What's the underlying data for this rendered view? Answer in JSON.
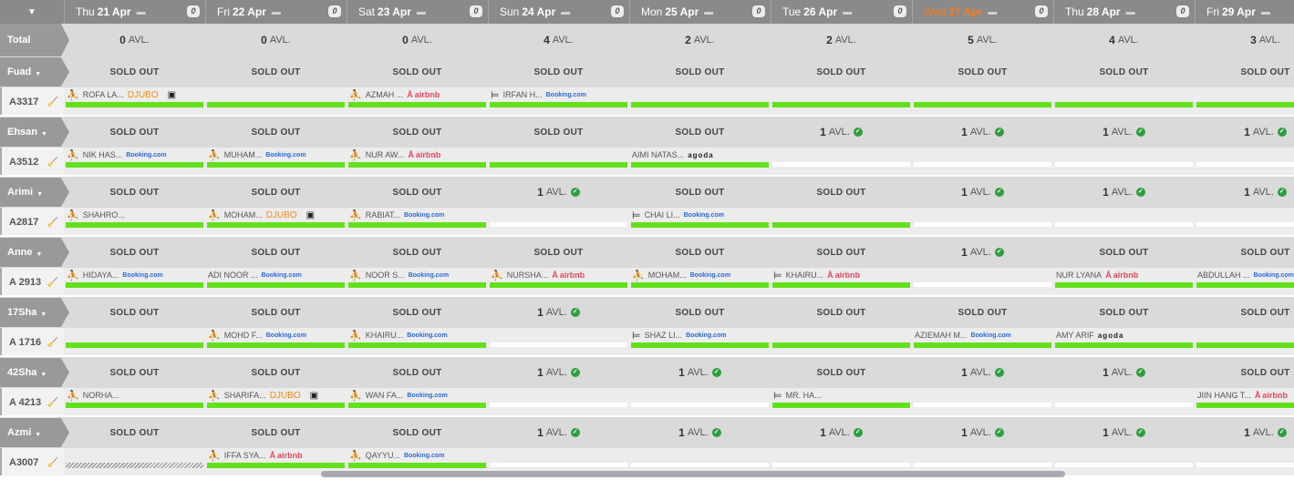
{
  "header": {
    "collapse_icon": "triangle-down-icon",
    "days": [
      {
        "dow": "Thu",
        "date": "21 Apr",
        "comments": "0",
        "today": false
      },
      {
        "dow": "Fri",
        "date": "22 Apr",
        "comments": "0",
        "today": false
      },
      {
        "dow": "Sat",
        "date": "23 Apr",
        "comments": "0",
        "today": false
      },
      {
        "dow": "Sun",
        "date": "24 Apr",
        "comments": "0",
        "today": false
      },
      {
        "dow": "Mon",
        "date": "25 Apr",
        "comments": "0",
        "today": false
      },
      {
        "dow": "Tue",
        "date": "26 Apr",
        "comments": "0",
        "today": false
      },
      {
        "dow": "Wed",
        "date": "27 Apr",
        "comments": "0",
        "today": true
      },
      {
        "dow": "Thu",
        "date": "28 Apr",
        "comments": "0",
        "today": false
      },
      {
        "dow": "Fri",
        "date": "29 Apr",
        "comments": "0",
        "today": false
      }
    ]
  },
  "total": {
    "label": "Total",
    "values": [
      "0",
      "0",
      "0",
      "4",
      "2",
      "2",
      "5",
      "4",
      "3"
    ],
    "unit": "AVL."
  },
  "labels": {
    "sold_out": "SOLD OUT",
    "avl": "AVL."
  },
  "colors": {
    "header": "#8a8a8a",
    "today": "#f97c1a",
    "bar": "#63e01c",
    "ok": "#2e9e3e"
  },
  "groups": [
    {
      "name": "Fuad",
      "room": "A3317",
      "avail": [
        "SOLD OUT",
        "SOLD OUT",
        "SOLD OUT",
        "SOLD OUT",
        "SOLD OUT",
        "SOLD OUT",
        "SOLD OUT",
        "SOLD OUT",
        "SOLD OUT"
      ],
      "bars": [
        1,
        1,
        1,
        1,
        1,
        1,
        1,
        1,
        1
      ],
      "bookings": [
        {
          "col": 0,
          "icon": "walk-in-icon",
          "guest": "ROFA LA...",
          "channel": "DJUBO",
          "card": true
        },
        {
          "col": 2,
          "icon": "walk-in-icon",
          "guest": "AZMAH ...",
          "channel": "airbnb"
        },
        {
          "col": 3,
          "icon": "bed-icon",
          "guest": "IRFAN H...",
          "channel": "Booking.com"
        }
      ]
    },
    {
      "name": "Ehsan",
      "room": "A3512",
      "avail": [
        "SOLD OUT",
        "SOLD OUT",
        "SOLD OUT",
        "SOLD OUT",
        "SOLD OUT",
        "1",
        "1",
        "1",
        "1"
      ],
      "bars": [
        1,
        1,
        1,
        1,
        1,
        0,
        0,
        0,
        0
      ],
      "bookings": [
        {
          "col": 0,
          "icon": "walk-in-icon",
          "guest": "NIK HAS...",
          "channel": "Booking.com"
        },
        {
          "col": 1,
          "icon": "walk-in-icon",
          "guest": "MUHAM...",
          "channel": "Booking.com"
        },
        {
          "col": 2,
          "icon": "walk-in-icon",
          "guest": "NUR AW...",
          "channel": "airbnb"
        },
        {
          "col": 4,
          "icon": "",
          "guest": "AIMI NATAS...",
          "channel": "agoda"
        }
      ]
    },
    {
      "name": "Arimi",
      "room": "A2817",
      "avail": [
        "SOLD OUT",
        "SOLD OUT",
        "SOLD OUT",
        "1",
        "SOLD OUT",
        "SOLD OUT",
        "1",
        "1",
        "1"
      ],
      "bars": [
        1,
        1,
        1,
        0,
        1,
        1,
        0,
        0,
        0
      ],
      "bookings": [
        {
          "col": 0,
          "icon": "walk-in-icon",
          "guest": "SHAHRO...",
          "channel": ""
        },
        {
          "col": 1,
          "icon": "walk-in-icon",
          "guest": "MOHAM...",
          "channel": "DJUBO",
          "card": true
        },
        {
          "col": 2,
          "icon": "walk-in-icon",
          "guest": "RABIAT...",
          "channel": "Booking.com"
        },
        {
          "col": 4,
          "icon": "bed-icon",
          "guest": "CHAI LI...",
          "channel": "Booking.com"
        }
      ]
    },
    {
      "name": "Anne",
      "room": "A 2913",
      "avail": [
        "SOLD OUT",
        "SOLD OUT",
        "SOLD OUT",
        "SOLD OUT",
        "SOLD OUT",
        "SOLD OUT",
        "1",
        "SOLD OUT",
        "SOLD OUT"
      ],
      "bars": [
        1,
        1,
        1,
        1,
        1,
        1,
        0,
        1,
        1
      ],
      "bookings": [
        {
          "col": 0,
          "icon": "walk-in-icon",
          "guest": "HIDAYA...",
          "channel": "Booking.com"
        },
        {
          "col": 1,
          "icon": "",
          "guest": "ADI NOOR ...",
          "channel": "Booking.com"
        },
        {
          "col": 2,
          "icon": "walk-in-icon",
          "guest": "NOOR S...",
          "channel": "Booking.com"
        },
        {
          "col": 3,
          "icon": "walk-in-icon",
          "guest": "NURSHA...",
          "channel": "airbnb"
        },
        {
          "col": 4,
          "icon": "walk-in-icon",
          "guest": "MOHAM...",
          "channel": "Booking.com"
        },
        {
          "col": 5,
          "icon": "bed-icon",
          "guest": "KHAIRU...",
          "channel": "airbnb"
        },
        {
          "col": 7,
          "icon": "",
          "guest": "NUR LYANA",
          "channel": "airbnb"
        },
        {
          "col": 8,
          "icon": "",
          "guest": "ABDULLAH ...",
          "channel": "Booking.com"
        }
      ]
    },
    {
      "name": "17Sha",
      "room": "A 1716",
      "avail": [
        "SOLD OUT",
        "SOLD OUT",
        "SOLD OUT",
        "1",
        "SOLD OUT",
        "SOLD OUT",
        "SOLD OUT",
        "SOLD OUT",
        "SOLD OUT"
      ],
      "bars": [
        1,
        1,
        1,
        0,
        1,
        1,
        1,
        1,
        1
      ],
      "bookings": [
        {
          "col": 1,
          "icon": "walk-in-icon",
          "guest": "MOHD F...",
          "channel": "Booking.com"
        },
        {
          "col": 2,
          "icon": "walk-in-icon",
          "guest": "KHAIRU...",
          "channel": "Booking.com"
        },
        {
          "col": 4,
          "icon": "bed-icon",
          "guest": "SHAZ LI...",
          "channel": "Booking.com"
        },
        {
          "col": 6,
          "icon": "",
          "guest": "AZIEMAH M...",
          "channel": "Booking.com"
        },
        {
          "col": 7,
          "icon": "",
          "guest": "AMY ARIF",
          "channel": "agoda"
        }
      ]
    },
    {
      "name": "42Sha",
      "room": "A 4213",
      "avail": [
        "SOLD OUT",
        "SOLD OUT",
        "SOLD OUT",
        "1",
        "1",
        "SOLD OUT",
        "1",
        "1",
        "SOLD OUT"
      ],
      "bars": [
        1,
        1,
        1,
        0,
        0,
        1,
        0,
        0,
        1
      ],
      "bookings": [
        {
          "col": 0,
          "icon": "walk-in-icon",
          "guest": "NORHA...",
          "channel": ""
        },
        {
          "col": 1,
          "icon": "walk-in-icon",
          "guest": "SHARIFA...",
          "channel": "DJUBO",
          "card": true
        },
        {
          "col": 2,
          "icon": "walk-in-icon",
          "guest": "WAN FA...",
          "channel": "Booking.com"
        },
        {
          "col": 5,
          "icon": "bed-icon",
          "guest": "MR. HA...",
          "channel": ""
        },
        {
          "col": 8,
          "icon": "",
          "guest": "JIIN HANG T...",
          "channel": "airbnb"
        }
      ]
    },
    {
      "name": "Azmi",
      "room": "A3007",
      "avail": [
        "SOLD OUT",
        "SOLD OUT",
        "SOLD OUT",
        "1",
        "1",
        "1",
        "1",
        "1",
        "1"
      ],
      "bars": [
        2,
        1,
        1,
        0,
        0,
        0,
        0,
        0,
        0
      ],
      "bookings": [
        {
          "col": 1,
          "icon": "walk-in-icon",
          "guest": "IFFA SYA...",
          "channel": "airbnb"
        },
        {
          "col": 2,
          "icon": "walk-in-icon",
          "guest": "QAYYU...",
          "channel": "Booking.com"
        }
      ]
    }
  ]
}
